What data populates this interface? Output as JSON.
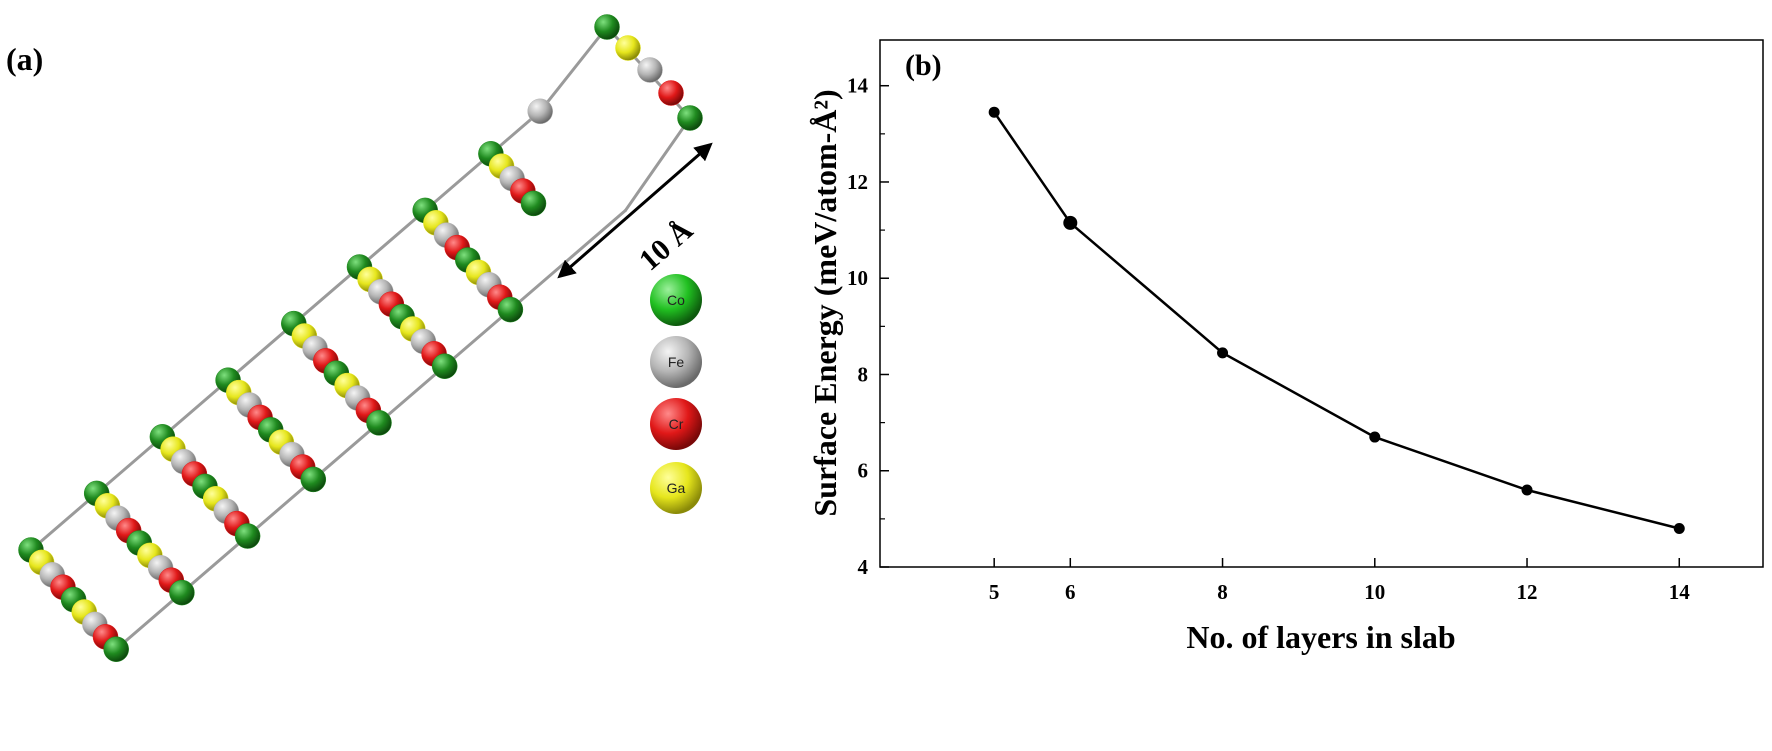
{
  "panel_a": {
    "label": "(a)",
    "scale_label": "10 Å",
    "legend": [
      {
        "label": "Co",
        "color": "#21c021"
      },
      {
        "label": "Fe",
        "color": "#b0b0b0"
      },
      {
        "label": "Cr",
        "color": "#e01818"
      },
      {
        "label": "Ga",
        "color": "#e4e41a"
      }
    ],
    "atom_colors": {
      "Co": "#1f8a1f",
      "Fe": "#b5b5b5",
      "Cr": "#e01818",
      "Ga": "#e6e61c"
    }
  },
  "chart_data": {
    "type": "line",
    "panel_label": "(b)",
    "title": "",
    "xlabel": "No. of layers in slab",
    "ylabel": "Surface Energy (meV/atom-Å²)",
    "x": [
      5,
      6,
      8,
      10,
      12,
      14
    ],
    "y": [
      13.45,
      11.15,
      8.45,
      6.7,
      5.6,
      4.8
    ],
    "xticks": [
      5,
      6,
      8,
      10,
      12,
      14
    ],
    "yticks": [
      4,
      6,
      8,
      10,
      12,
      14
    ],
    "xlim": [
      3.5,
      15.1
    ],
    "ylim": [
      4.0,
      14.95
    ],
    "grid": false,
    "legend": "none",
    "line_color": "#000000",
    "marker_color": "#000000"
  }
}
